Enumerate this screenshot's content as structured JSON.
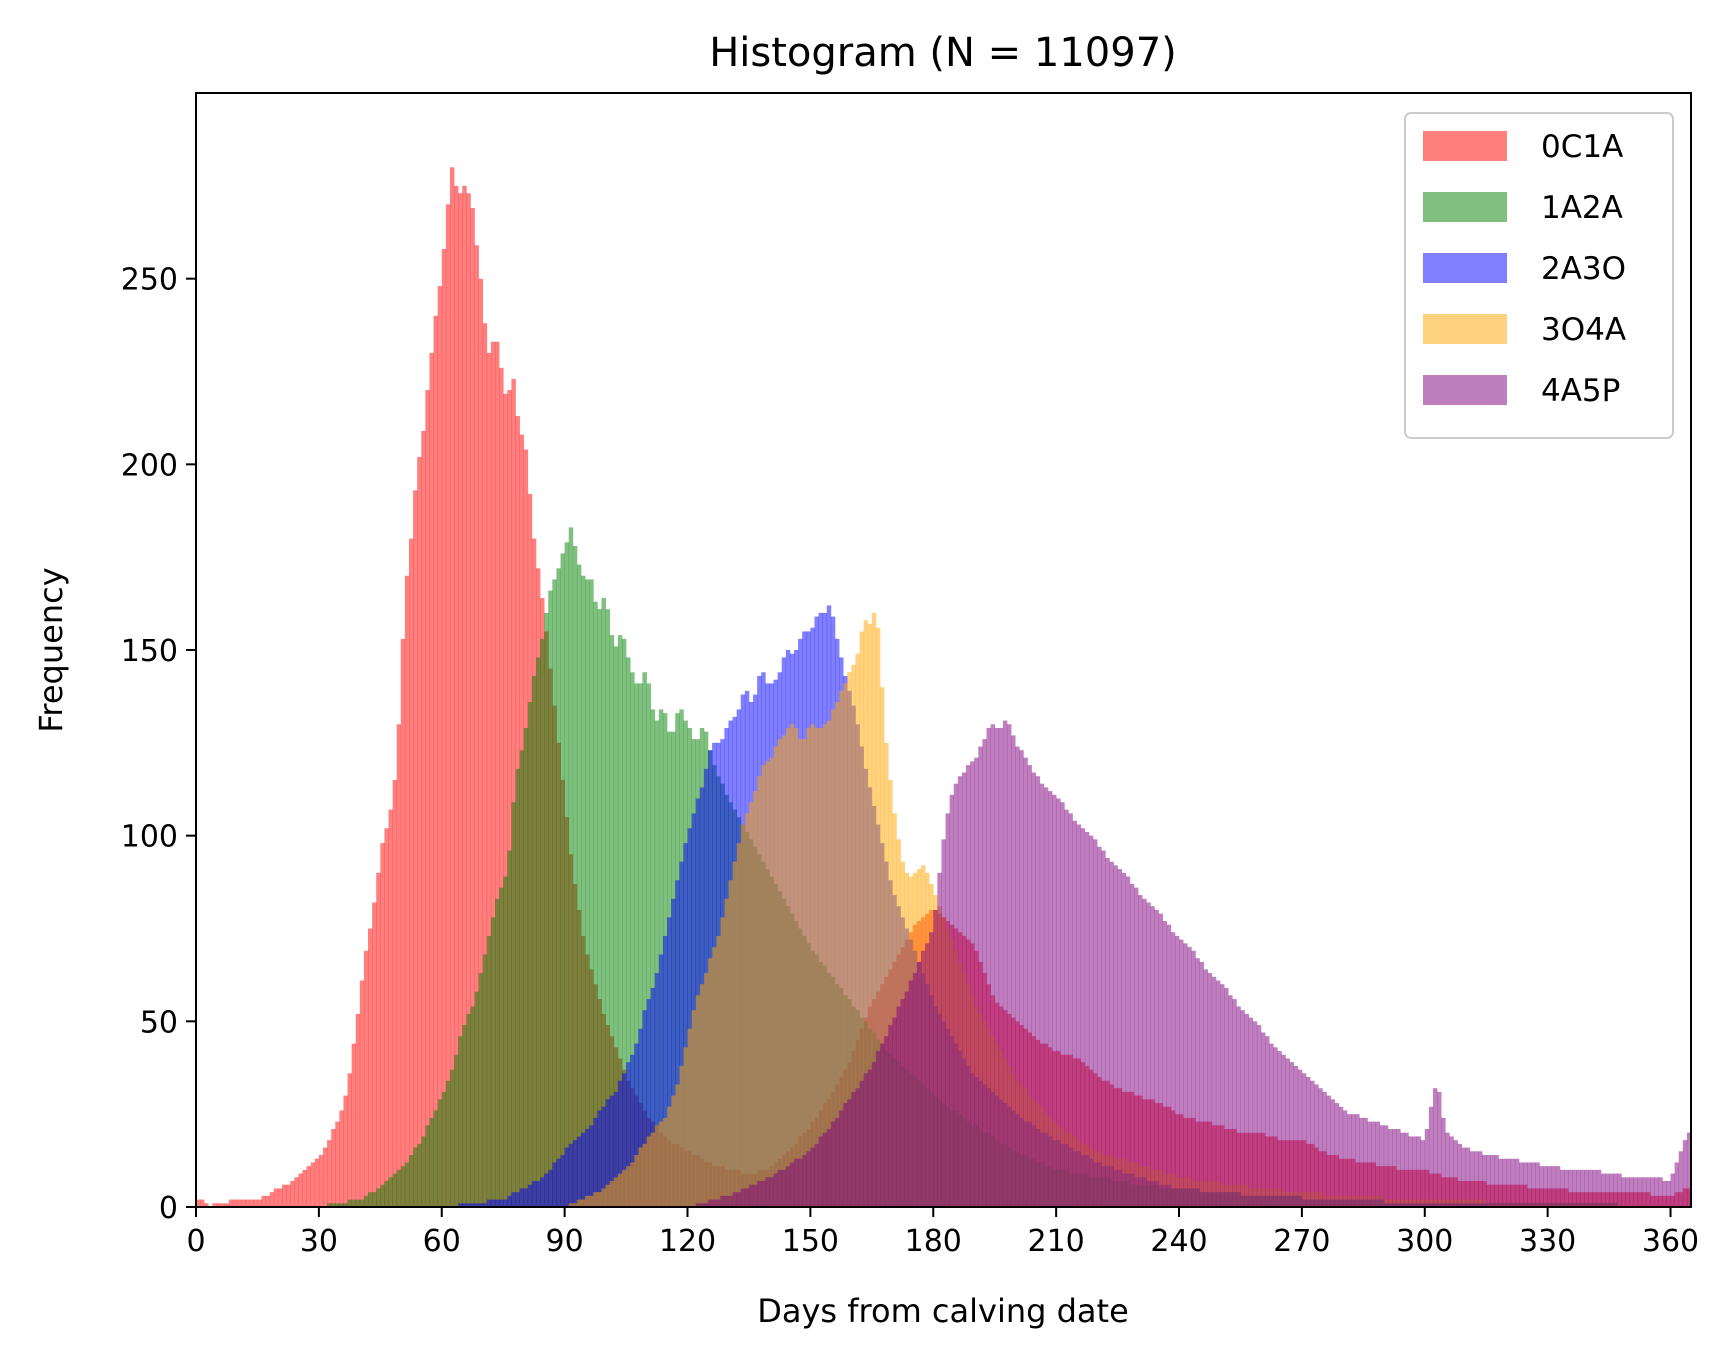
{
  "chart_data": {
    "type": "histogram",
    "title": "Histogram (N = 11097)",
    "xlabel": "Days from calving date",
    "ylabel": "Frequency",
    "xlim": [
      0,
      365
    ],
    "ylim": [
      0,
      300
    ],
    "bin_width": 1,
    "xticks": [
      0,
      30,
      60,
      90,
      120,
      150,
      180,
      210,
      240,
      270,
      300,
      330,
      360
    ],
    "yticks": [
      0,
      50,
      100,
      150,
      200,
      250
    ],
    "grid": false,
    "legend_position": "top-right",
    "series": [
      {
        "name": "0C1A",
        "color": "#ff0000",
        "alpha": 0.5,
        "x": [
          1,
          3,
          6,
          10,
          14,
          18,
          20,
          22,
          24,
          26,
          28,
          30,
          32,
          34,
          36,
          37,
          38,
          39,
          40,
          41,
          42,
          43,
          44,
          45,
          46,
          47,
          48,
          49,
          50,
          51,
          52,
          53,
          54,
          55,
          56,
          57,
          58,
          59,
          60,
          61,
          62,
          63,
          64,
          65,
          66,
          67,
          68,
          69,
          70,
          71,
          72,
          73,
          74,
          75,
          76,
          77,
          78,
          79,
          80,
          81,
          82,
          83,
          84,
          86,
          88,
          90,
          92,
          95,
          100,
          105,
          110,
          115,
          120,
          125,
          130,
          135,
          140,
          145,
          150,
          155,
          160,
          165,
          170,
          175,
          180,
          185,
          190,
          195,
          200,
          205,
          210,
          215,
          220,
          225,
          230,
          235,
          240,
          245,
          250,
          255,
          260,
          265,
          270,
          275,
          280,
          285,
          290,
          295,
          300,
          305,
          310,
          320,
          330,
          340,
          350,
          360,
          364
        ],
        "y": [
          2,
          0,
          1,
          2,
          2,
          3,
          5,
          6,
          7,
          9,
          11,
          13,
          17,
          22,
          27,
          32,
          39,
          48,
          56,
          65,
          72,
          78,
          85,
          95,
          100,
          104,
          110,
          120,
          140,
          165,
          175,
          185,
          200,
          203,
          215,
          225,
          235,
          245,
          250,
          265,
          275,
          285,
          265,
          280,
          270,
          275,
          262,
          255,
          245,
          230,
          230,
          235,
          230,
          222,
          215,
          225,
          220,
          205,
          210,
          198,
          185,
          175,
          168,
          150,
          130,
          110,
          90,
          70,
          50,
          35,
          25,
          18,
          15,
          12,
          10,
          9,
          10,
          15,
          22,
          30,
          40,
          55,
          65,
          75,
          80,
          75,
          70,
          55,
          50,
          45,
          42,
          40,
          35,
          32,
          30,
          28,
          25,
          23,
          22,
          20,
          20,
          18,
          18,
          15,
          13,
          12,
          11,
          10,
          10,
          8,
          7,
          6,
          5,
          4,
          4,
          3,
          5
        ]
      },
      {
        "name": "1A2A",
        "color": "#008000",
        "alpha": 0.5,
        "x": [
          30,
          40,
          45,
          50,
          55,
          58,
          60,
          63,
          65,
          68,
          70,
          72,
          74,
          76,
          78,
          80,
          82,
          83,
          84,
          85,
          86,
          88,
          90,
          91,
          92,
          93,
          94,
          95,
          96,
          98,
          100,
          102,
          104,
          106,
          108,
          110,
          112,
          114,
          116,
          118,
          120,
          122,
          124,
          126,
          128,
          130,
          135,
          140,
          145,
          150,
          160,
          170,
          180,
          190,
          200,
          210,
          220,
          230,
          240,
          260,
          280,
          300,
          330,
          364
        ],
        "y": [
          0,
          2,
          5,
          10,
          18,
          25,
          30,
          38,
          48,
          55,
          65,
          75,
          85,
          90,
          115,
          125,
          140,
          145,
          150,
          155,
          165,
          170,
          178,
          180,
          185,
          170,
          175,
          165,
          172,
          160,
          165,
          150,
          155,
          145,
          140,
          145,
          130,
          135,
          125,
          135,
          130,
          125,
          130,
          120,
          115,
          110,
          100,
          90,
          80,
          70,
          55,
          40,
          30,
          22,
          15,
          10,
          8,
          6,
          5,
          3,
          2,
          1,
          1,
          0
        ]
      },
      {
        "name": "2A3O",
        "color": "#0000ff",
        "alpha": 0.5,
        "x": [
          60,
          75,
          80,
          85,
          90,
          95,
          100,
          102,
          104,
          106,
          108,
          110,
          112,
          114,
          116,
          118,
          120,
          122,
          124,
          126,
          128,
          130,
          132,
          134,
          136,
          138,
          140,
          142,
          144,
          146,
          148,
          150,
          152,
          154,
          155,
          156,
          157,
          158,
          159,
          160,
          165,
          170,
          180,
          190,
          200,
          210,
          220,
          230,
          240,
          260,
          280,
          300,
          330,
          364
        ],
        "y": [
          0,
          2,
          5,
          8,
          15,
          20,
          28,
          30,
          35,
          40,
          45,
          55,
          60,
          70,
          80,
          90,
          100,
          108,
          115,
          125,
          125,
          130,
          132,
          140,
          135,
          145,
          140,
          142,
          150,
          148,
          155,
          155,
          160,
          160,
          163,
          155,
          150,
          145,
          140,
          138,
          110,
          85,
          55,
          35,
          25,
          18,
          12,
          8,
          5,
          3,
          2,
          1,
          1,
          0
        ]
      },
      {
        "name": "3O4A",
        "color": "#ffa500",
        "alpha": 0.5,
        "x": [
          90,
          100,
          105,
          110,
          115,
          118,
          120,
          122,
          125,
          128,
          130,
          132,
          134,
          136,
          138,
          140,
          142,
          144,
          146,
          148,
          150,
          152,
          154,
          156,
          158,
          160,
          162,
          163,
          164,
          165,
          166,
          167,
          168,
          170,
          172,
          174,
          176,
          178,
          180,
          185,
          190,
          200,
          210,
          220,
          240,
          260,
          280,
          300,
          330,
          364
        ],
        "y": [
          0,
          5,
          10,
          18,
          25,
          35,
          45,
          55,
          65,
          75,
          85,
          95,
          105,
          110,
          118,
          120,
          125,
          128,
          130,
          125,
          130,
          128,
          130,
          135,
          140,
          145,
          150,
          160,
          155,
          158,
          162,
          150,
          130,
          110,
          95,
          88,
          90,
          92,
          85,
          70,
          55,
          35,
          22,
          15,
          8,
          5,
          3,
          2,
          1,
          0
        ]
      },
      {
        "name": "4A5P",
        "color": "#800080",
        "alpha": 0.5,
        "x": [
          120,
          130,
          140,
          150,
          155,
          160,
          165,
          170,
          175,
          180,
          182,
          184,
          186,
          188,
          190,
          192,
          194,
          196,
          198,
          200,
          202,
          204,
          206,
          208,
          210,
          212,
          214,
          216,
          218,
          220,
          222,
          224,
          226,
          228,
          230,
          232,
          234,
          236,
          238,
          240,
          242,
          244,
          246,
          248,
          250,
          252,
          254,
          256,
          258,
          260,
          262,
          264,
          266,
          268,
          270,
          272,
          274,
          276,
          278,
          280,
          285,
          290,
          295,
          300,
          303,
          305,
          310,
          315,
          320,
          325,
          330,
          335,
          340,
          345,
          350,
          355,
          360,
          364
        ],
        "y": [
          0,
          3,
          8,
          15,
          22,
          30,
          38,
          50,
          62,
          75,
          95,
          110,
          115,
          118,
          120,
          125,
          130,
          128,
          132,
          125,
          122,
          118,
          115,
          112,
          110,
          108,
          105,
          102,
          100,
          98,
          95,
          92,
          90,
          88,
          85,
          82,
          80,
          78,
          75,
          72,
          70,
          68,
          65,
          62,
          60,
          58,
          55,
          52,
          50,
          48,
          45,
          42,
          40,
          38,
          36,
          34,
          32,
          30,
          28,
          26,
          24,
          22,
          20,
          18,
          35,
          20,
          16,
          14,
          13,
          12,
          11,
          10,
          10,
          9,
          8,
          8,
          7,
          20
        ]
      }
    ]
  }
}
